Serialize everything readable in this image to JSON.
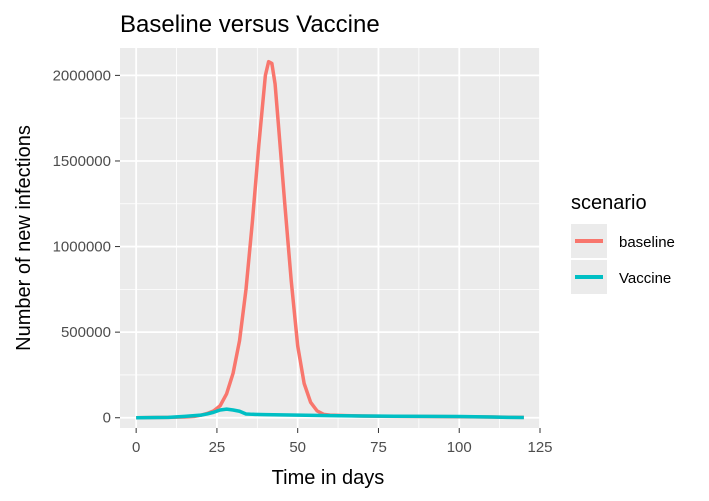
{
  "chart_data": {
    "type": "line",
    "title": "Baseline versus Vaccine",
    "xlabel": "Time in days",
    "ylabel": "Number of new infections",
    "xlim": [
      -5,
      125
    ],
    "ylim": [
      -60000,
      2160000
    ],
    "x_ticks": [
      0,
      25,
      50,
      75,
      100,
      125
    ],
    "y_ticks": [
      0,
      500000,
      1000000,
      1500000,
      2000000
    ],
    "x_tick_labels": [
      "0",
      "25",
      "50",
      "75",
      "100",
      "125"
    ],
    "y_tick_labels": [
      "0",
      "500000",
      "1000000",
      "1500000",
      "2000000"
    ],
    "grid": true,
    "legend": {
      "title": "scenario",
      "placement": "right",
      "entries": [
        {
          "label": "baseline",
          "color": "#F8766D"
        },
        {
          "label": "Vaccine",
          "color": "#00BFC4"
        }
      ]
    },
    "series": [
      {
        "name": "baseline",
        "color": "#F8766D",
        "x": [
          0,
          5,
          10,
          15,
          18,
          20,
          22,
          24,
          26,
          28,
          30,
          32,
          34,
          36,
          38,
          40,
          41,
          42,
          43,
          44,
          46,
          48,
          50,
          52,
          54,
          56,
          58,
          60,
          65,
          70,
          80,
          90,
          100,
          110,
          120
        ],
        "y": [
          0,
          1000,
          2000,
          4000,
          8000,
          15000,
          25000,
          40000,
          70000,
          140000,
          260000,
          450000,
          750000,
          1150000,
          1600000,
          2000000,
          2080000,
          2070000,
          1950000,
          1720000,
          1250000,
          800000,
          420000,
          200000,
          90000,
          40000,
          20000,
          15000,
          12000,
          10000,
          8000,
          7000,
          6000,
          4000,
          2000
        ]
      },
      {
        "name": "Vaccine",
        "color": "#00BFC4",
        "x": [
          0,
          10,
          15,
          20,
          22,
          24,
          26,
          28,
          30,
          32,
          34,
          36,
          40,
          50,
          60,
          70,
          80,
          90,
          100,
          105,
          110,
          115,
          120
        ],
        "y": [
          0,
          2000,
          8000,
          15000,
          22000,
          32000,
          45000,
          50000,
          45000,
          38000,
          22000,
          20000,
          18000,
          15000,
          12000,
          10000,
          9000,
          8000,
          7000,
          6000,
          4000,
          2000,
          1000
        ]
      }
    ]
  }
}
